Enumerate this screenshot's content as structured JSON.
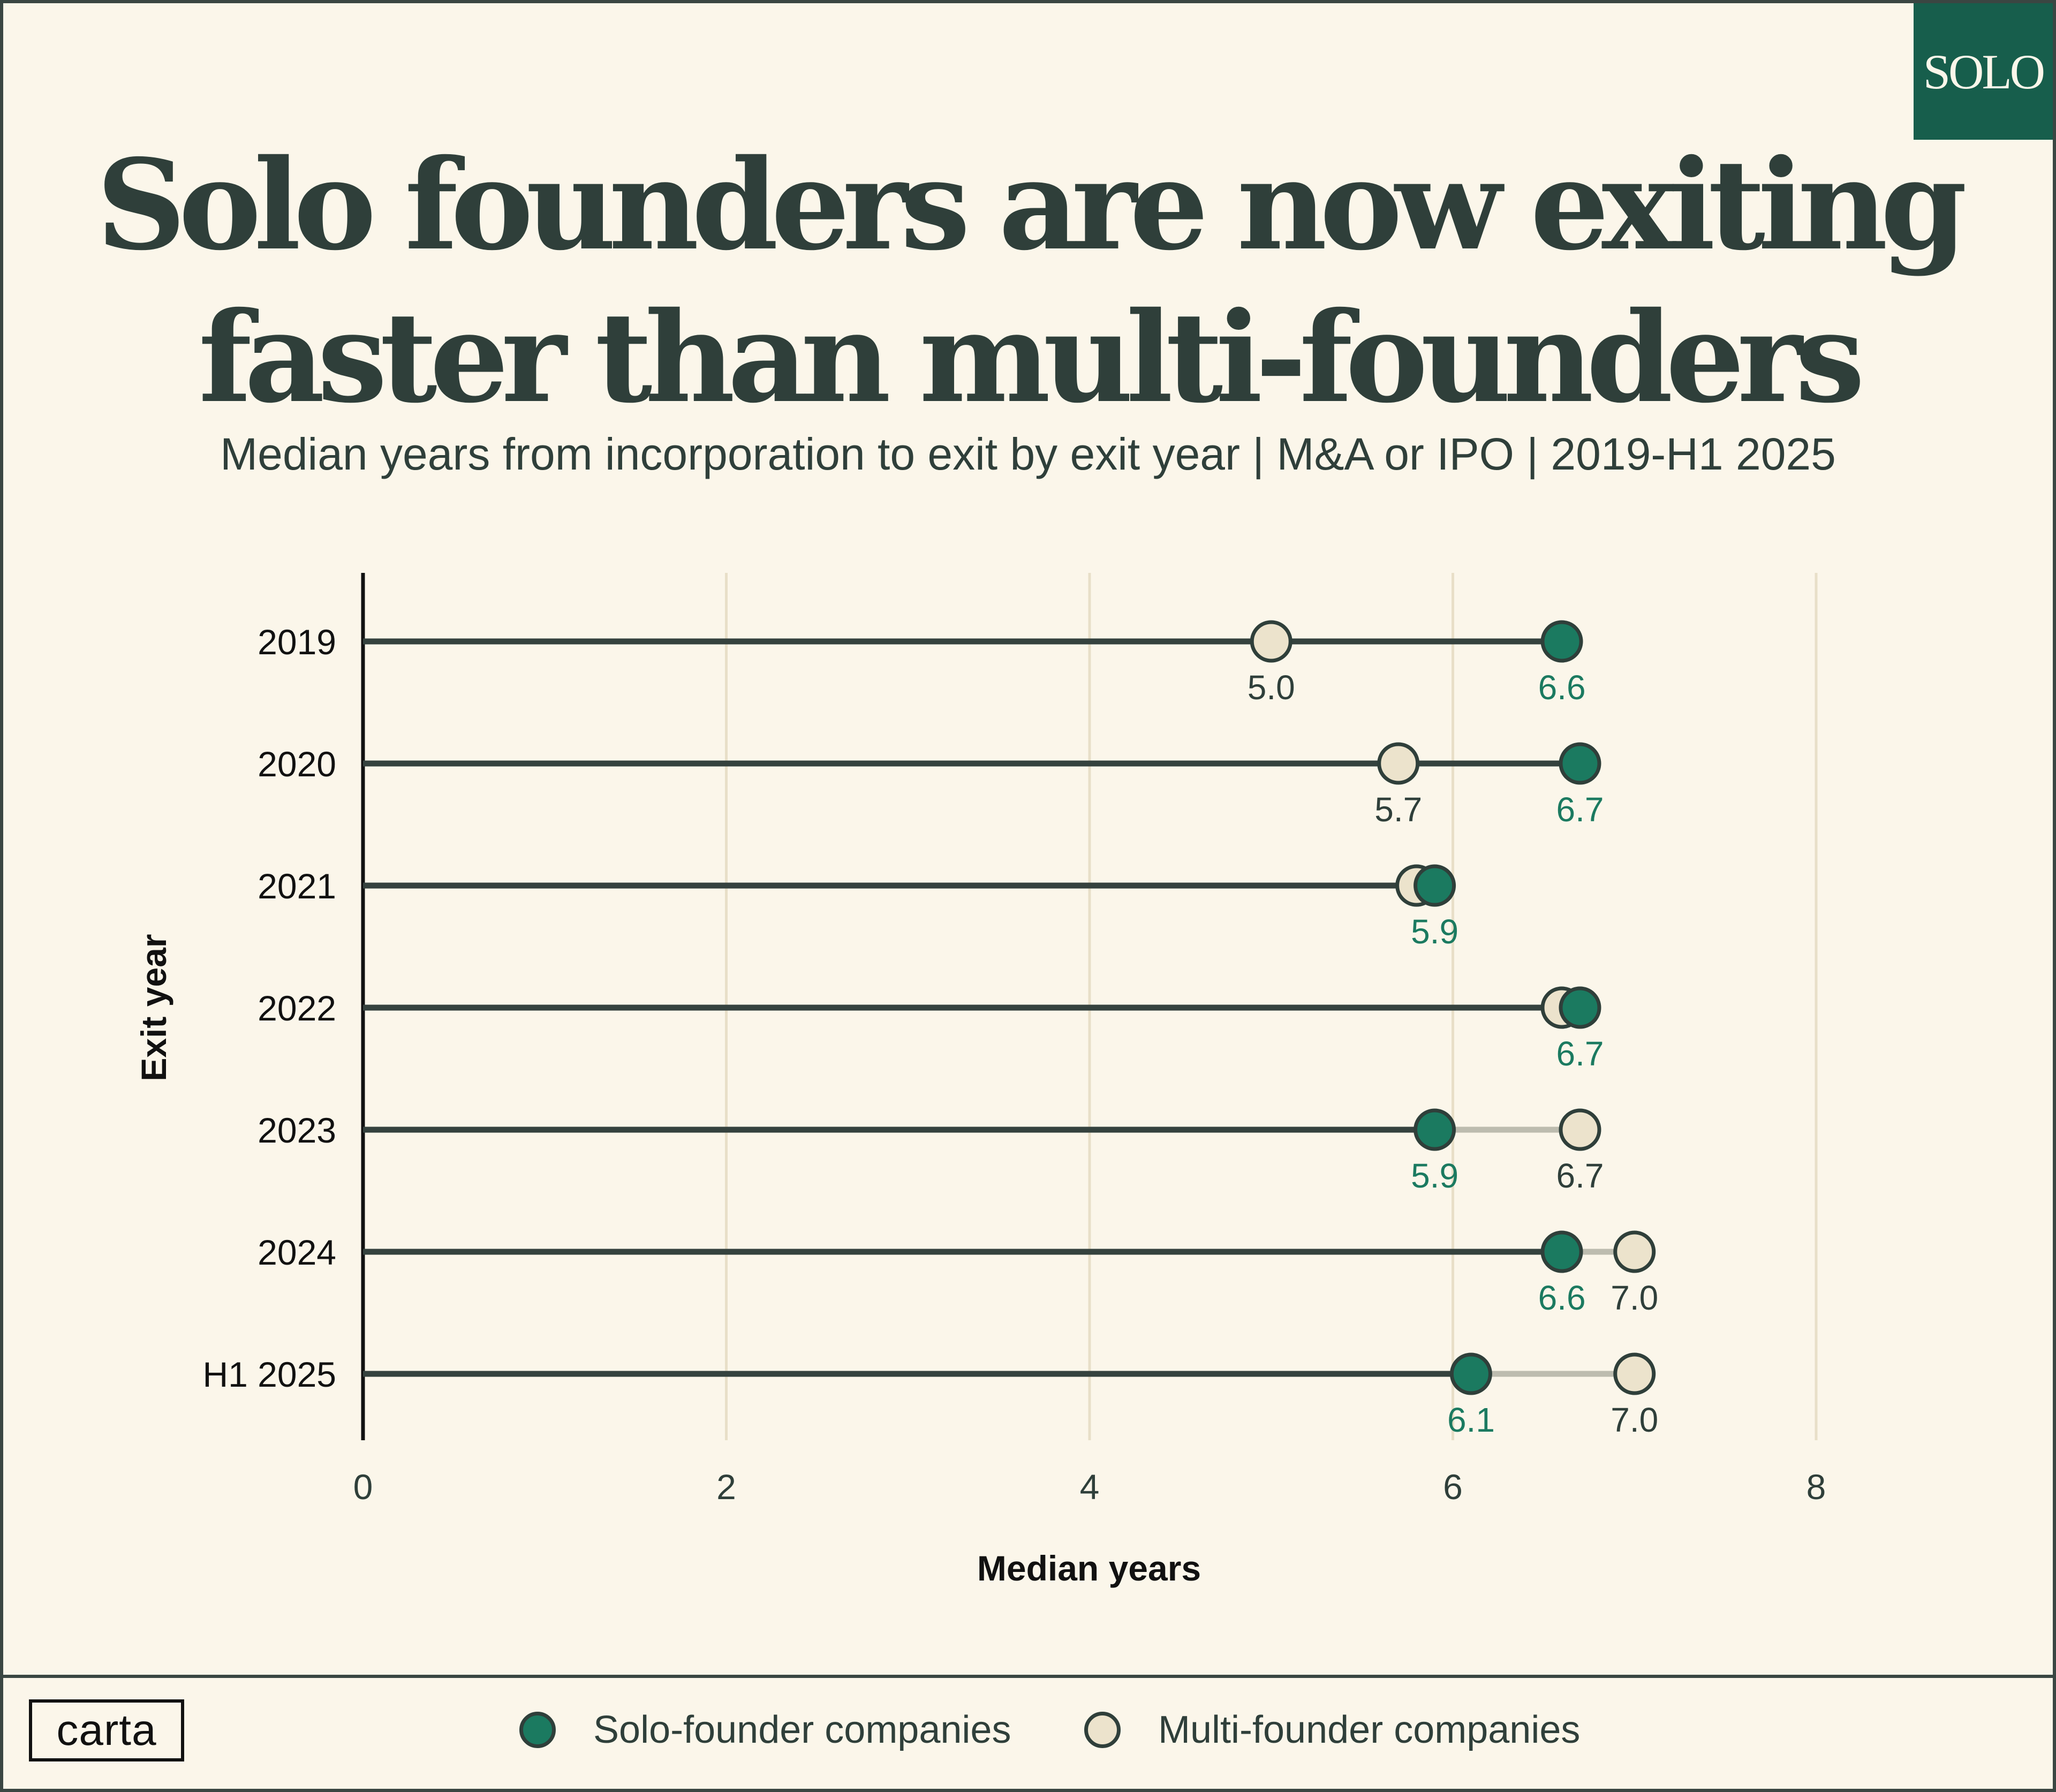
{
  "badge": {
    "text": "SOLO"
  },
  "title": {
    "line1": "Solo founders are now exiting",
    "line2": "faster than multi-founders"
  },
  "subtitle": "Median years from incorporation to exit by exit year | M&A or IPO | 2019-H1 2025",
  "colors": {
    "solo": "#1b7a60",
    "multi": "#ece3cc",
    "line_dark": "#35423e",
    "line_light": "#bdbcaf",
    "grid": "#e8dfc8",
    "badge_bg": "#175e4c",
    "background": "#fbf6ea"
  },
  "chart_data": {
    "type": "dumbbell",
    "xlabel": "Median years",
    "ylabel": "Exit year",
    "xlim": [
      0,
      8
    ],
    "xticks": [
      "0",
      "2",
      "4",
      "6",
      "8"
    ],
    "grid": "vertical",
    "categories": [
      "2019",
      "2020",
      "2021",
      "2022",
      "2023",
      "2024",
      "H1 2025"
    ],
    "series": [
      {
        "name": "Solo-founder companies",
        "values": [
          6.6,
          6.7,
          5.9,
          6.7,
          5.9,
          6.6,
          6.1
        ],
        "labels": [
          "6.6",
          "6.7",
          "5.9",
          "6.7",
          "5.9",
          "6.6",
          "6.1"
        ]
      },
      {
        "name": "Multi-founder companies",
        "values": [
          5.0,
          5.7,
          5.8,
          6.6,
          6.7,
          7.0,
          7.0
        ],
        "labels": [
          "5.0",
          "5.7",
          "",
          "",
          "6.7",
          "7.0",
          "7.0"
        ]
      }
    ]
  },
  "legend": {
    "solo_label": "Solo-founder companies",
    "multi_label": "Multi-founder companies"
  },
  "footer": {
    "logo_text": "carta"
  }
}
